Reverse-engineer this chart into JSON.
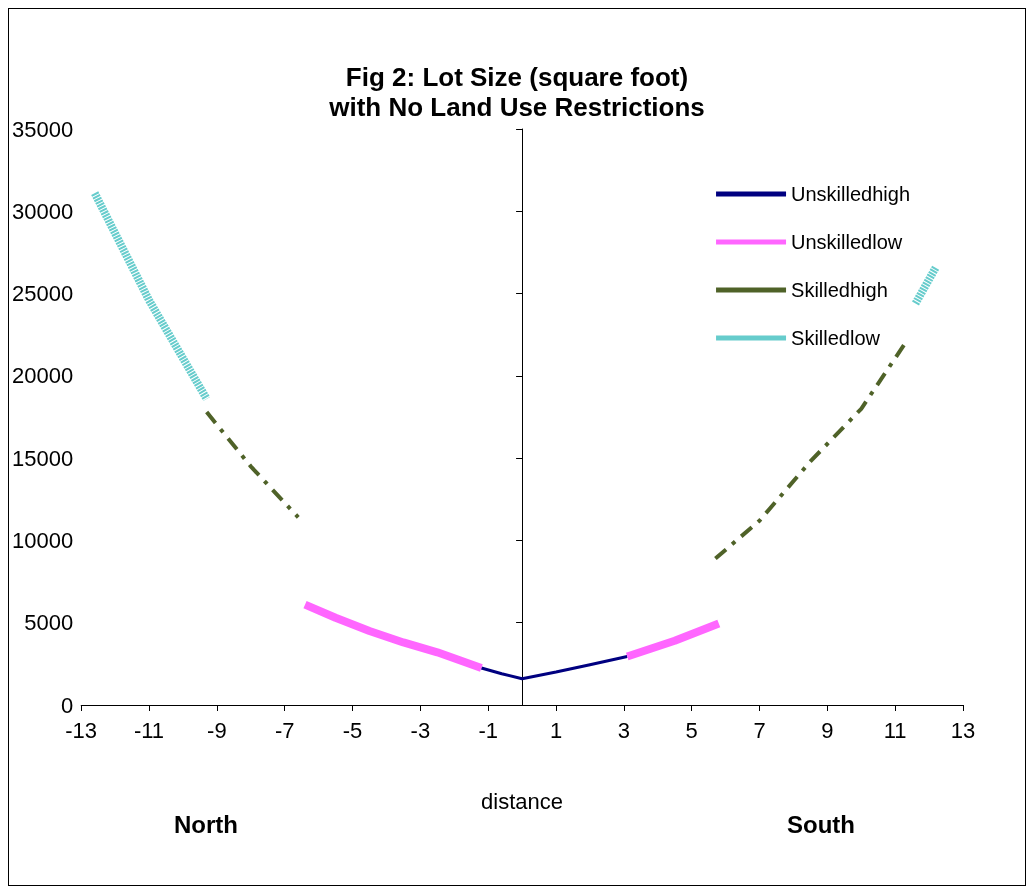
{
  "chart_data": {
    "type": "line",
    "title": "Fig 2: Lot Size (square foot)\nwith No Land Use Restrictions",
    "xlabel": "distance",
    "annotations": [
      "North",
      "South"
    ],
    "series": [
      {
        "name": "Unskilledhigh",
        "color": "#000080",
        "line_style": "solid",
        "x": [
          -1.2,
          -0.6,
          0,
          1,
          2,
          3.1
        ],
        "values": [
          2250,
          1900,
          1600,
          2000,
          2450,
          2950
        ]
      },
      {
        "name": "Unskilledlow",
        "color": "#ff66ff",
        "line_style": "solid",
        "x": [
          -6.4,
          -5.5,
          -4.5,
          -3.5,
          -2.5,
          -1.2,
          null,
          3.1,
          4.5,
          5.8
        ],
        "values": [
          6100,
          5300,
          4500,
          3800,
          3200,
          2250,
          null,
          2950,
          3900,
          4950
        ]
      },
      {
        "name": "Skilledhigh",
        "color": "#4f6228",
        "line_style": "dashed",
        "x": [
          -9.3,
          -8,
          -6.6,
          null,
          5.7,
          7,
          8.5,
          10,
          11.3
        ],
        "values": [
          17800,
          14500,
          11400,
          null,
          8900,
          11200,
          14800,
          18000,
          22000
        ]
      },
      {
        "name": "Skilledlow",
        "color": "#66cccc",
        "line_style": "dotted",
        "x": [
          -12.6,
          -11,
          -9.3,
          null,
          11.6,
          12.2
        ],
        "values": [
          31100,
          24600,
          18600,
          null,
          24400,
          26600
        ]
      }
    ],
    "xlim": [
      -13,
      13
    ],
    "xticks": [
      -13,
      -11,
      -9,
      -7,
      -5,
      -3,
      -1,
      1,
      3,
      5,
      7,
      9,
      11,
      13
    ],
    "ylim": [
      0,
      35000
    ],
    "yticks": [
      0,
      5000,
      10000,
      15000,
      20000,
      25000,
      30000,
      35000
    ],
    "grid": false,
    "legend": "top right",
    "marker": "none"
  }
}
